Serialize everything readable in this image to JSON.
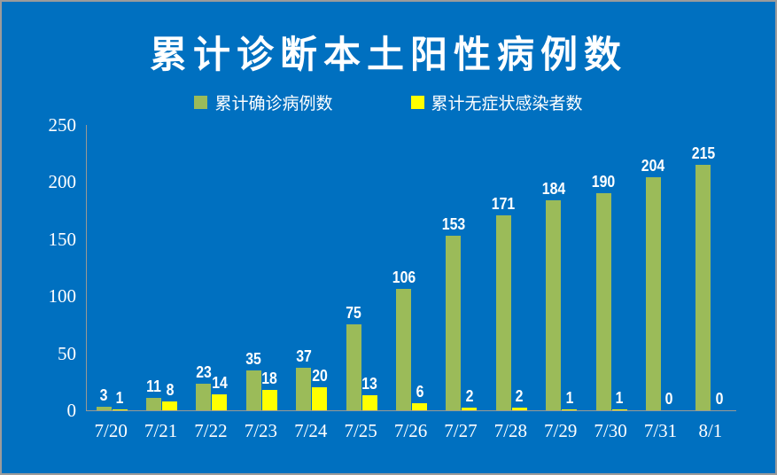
{
  "frame": {
    "background_color": "#0070C0",
    "border_color": "#9B9B9B"
  },
  "title": "累计诊断本土阳性病例数",
  "legend": {
    "items": [
      {
        "label": "累计确诊病例数",
        "color": "#9BBB59"
      },
      {
        "label": "累计无症状感染者数",
        "color": "#FFFF00"
      }
    ]
  },
  "chart_data": {
    "type": "bar",
    "title": "累计诊断本土阳性病例数",
    "categories": [
      "7/20",
      "7/21",
      "7/22",
      "7/23",
      "7/24",
      "7/25",
      "7/26",
      "7/27",
      "7/28",
      "7/29",
      "7/30",
      "7/31",
      "8/1"
    ],
    "series": [
      {
        "name": "累计确诊病例数",
        "color": "#9BBB59",
        "values": [
          3,
          11,
          23,
          35,
          37,
          75,
          106,
          153,
          171,
          184,
          190,
          204,
          215
        ]
      },
      {
        "name": "累计无症状感染者数",
        "color": "#FFFF00",
        "values": [
          1,
          8,
          14,
          18,
          20,
          13,
          6,
          2,
          2,
          1,
          1,
          0,
          0
        ]
      }
    ],
    "xlabel": "",
    "ylabel": "",
    "ylim": [
      0,
      250
    ],
    "ytick_step": 50,
    "yticks": [
      0,
      50,
      100,
      150,
      200,
      250
    ],
    "grid": false,
    "legend_position": "top",
    "data_labels": true,
    "axis_color": "#9a9a94",
    "text_color": "#FFFFFF"
  }
}
